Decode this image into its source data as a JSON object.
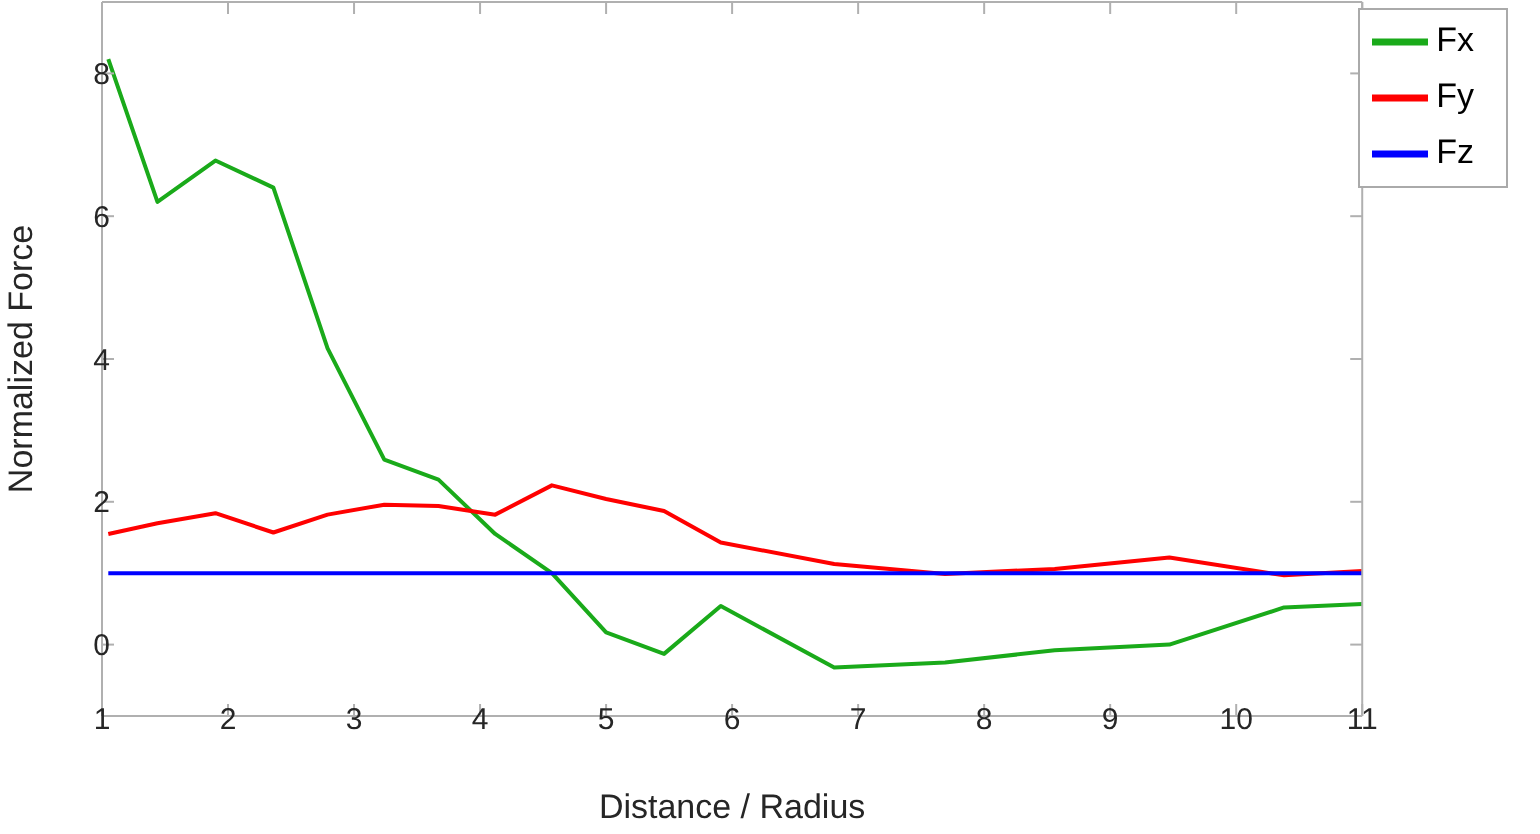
{
  "chart_data": {
    "type": "line",
    "xlabel": "Distance / Radius",
    "ylabel": "Normalized Force",
    "x": [
      1.05,
      1.44,
      1.9,
      2.36,
      2.79,
      3.24,
      3.67,
      4.12,
      4.57,
      5.0,
      5.46,
      5.91,
      6.81,
      7.69,
      8.56,
      9.47,
      10.38,
      11.0
    ],
    "series": [
      {
        "name": "Fx",
        "color": "#1aaa1a",
        "values": [
          8.2,
          6.2,
          6.78,
          6.4,
          4.15,
          2.59,
          2.31,
          1.55,
          1.0,
          0.17,
          -0.13,
          0.54,
          -0.32,
          -0.25,
          -0.08,
          0.0,
          0.52,
          0.57
        ]
      },
      {
        "name": "Fy",
        "color": "#ff0000",
        "values": [
          1.55,
          1.7,
          1.84,
          1.57,
          1.82,
          1.96,
          1.94,
          1.82,
          2.23,
          2.04,
          1.87,
          1.43,
          1.13,
          0.99,
          1.06,
          1.22,
          0.97,
          1.03
        ]
      },
      {
        "name": "Fz",
        "color": "#0000ff",
        "values": [
          1.0,
          1.0,
          1.0,
          1.0,
          1.0,
          1.0,
          1.0,
          1.0,
          1.0,
          1.0,
          1.0,
          1.0,
          1.0,
          1.0,
          1.0,
          1.0,
          1.0,
          1.0
        ]
      }
    ],
    "xlim": [
      1,
      11
    ],
    "xticks": [
      1,
      2,
      3,
      4,
      5,
      6,
      7,
      8,
      9,
      10,
      11
    ],
    "ylim": [
      -1,
      9
    ],
    "yticks": [
      0,
      2,
      4,
      6,
      8
    ],
    "grid": false,
    "legend": "top right",
    "marker": "none",
    "line_style": "solid"
  }
}
